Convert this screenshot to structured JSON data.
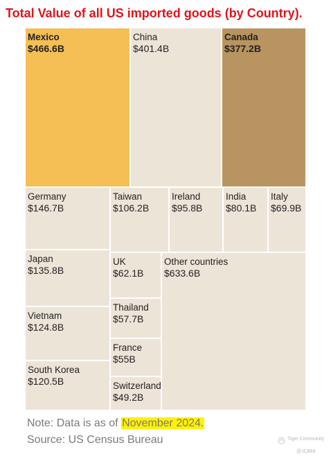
{
  "title": "Total Value of all US imported goods (by Country).",
  "note_prefix": "Note: Data is as of ",
  "note_date": "November 2024.",
  "source": "Source: US Census Bureau",
  "watermark": "Tiger Community",
  "watermark_user": "@JC888",
  "colors": {
    "title": "#e0141b",
    "mexico": "#f5bf55",
    "canada": "#b89460",
    "other": "#ede4d8",
    "highlight": "#fff200"
  },
  "chart_data": {
    "type": "treemap",
    "unit": "B",
    "cells": [
      {
        "name": "Mexico",
        "label": "$466.6B",
        "value": 466.6
      },
      {
        "name": "China",
        "label": "$401.4B",
        "value": 401.4
      },
      {
        "name": "Canada",
        "label": "$377.2B",
        "value": 377.2
      },
      {
        "name": "Germany",
        "label": "$146.7B",
        "value": 146.7
      },
      {
        "name": "Taiwan",
        "label": "$106.2B",
        "value": 106.2
      },
      {
        "name": "Ireland",
        "label": "$95.8B",
        "value": 95.8
      },
      {
        "name": "India",
        "label": "$80.1B",
        "value": 80.1
      },
      {
        "name": "Italy",
        "label": "$69.9B",
        "value": 69.9
      },
      {
        "name": "Japan",
        "label": "$135.8B",
        "value": 135.8
      },
      {
        "name": "UK",
        "label": "$62.1B",
        "value": 62.1
      },
      {
        "name": "Other countries",
        "label": "$633.6B",
        "value": 633.6
      },
      {
        "name": "Vietnam",
        "label": "$124.8B",
        "value": 124.8
      },
      {
        "name": "Thailand",
        "label": "$57.7B",
        "value": 57.7
      },
      {
        "name": "France",
        "label": "$55B",
        "value": 55
      },
      {
        "name": "South Korea",
        "label": "$120.5B",
        "value": 120.5
      },
      {
        "name": "Switzerland",
        "label": "$49.2B",
        "value": 49.2
      }
    ]
  }
}
